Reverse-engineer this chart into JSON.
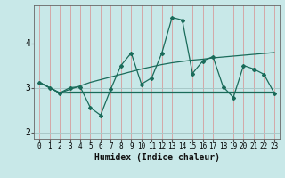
{
  "background_color": "#c8e8e8",
  "grid_color_v": "#d4a8a8",
  "grid_color_h": "#a8c8c8",
  "line_color": "#1a6b5a",
  "xlim": [
    -0.5,
    23.5
  ],
  "ylim": [
    1.85,
    4.85
  ],
  "yticks": [
    2,
    3,
    4
  ],
  "xticks": [
    0,
    1,
    2,
    3,
    4,
    5,
    6,
    7,
    8,
    9,
    10,
    11,
    12,
    13,
    14,
    15,
    16,
    17,
    18,
    19,
    20,
    21,
    22,
    23
  ],
  "xlabel": "Humidex (Indice chaleur)",
  "series_main": [
    3.12,
    3.0,
    2.88,
    3.0,
    3.02,
    2.55,
    2.38,
    2.97,
    3.5,
    3.78,
    3.08,
    3.22,
    3.78,
    4.58,
    4.52,
    3.32,
    3.6,
    3.7,
    3.02,
    2.78,
    3.5,
    3.42,
    3.3,
    2.88
  ],
  "series_flat": [
    3.12,
    3.0,
    2.88,
    2.88,
    2.88,
    2.88,
    2.88,
    2.88,
    2.88,
    2.88,
    2.88,
    2.88,
    2.88,
    2.88,
    2.88,
    2.88,
    2.88,
    2.88,
    2.88,
    2.88,
    2.88,
    2.88,
    2.88,
    2.88
  ],
  "series_rising": [
    3.12,
    3.0,
    2.88,
    2.96,
    3.04,
    3.12,
    3.18,
    3.24,
    3.3,
    3.36,
    3.42,
    3.47,
    3.52,
    3.56,
    3.59,
    3.62,
    3.64,
    3.67,
    3.69,
    3.71,
    3.73,
    3.75,
    3.77,
    3.79
  ],
  "series_flat2": [
    3.12,
    3.0,
    2.88,
    2.9,
    2.9,
    2.9,
    2.9,
    2.9,
    2.9,
    2.9,
    2.9,
    2.9,
    2.9,
    2.9,
    2.9,
    2.9,
    2.9,
    2.9,
    2.9,
    2.9,
    2.9,
    2.9,
    2.9,
    2.9
  ]
}
